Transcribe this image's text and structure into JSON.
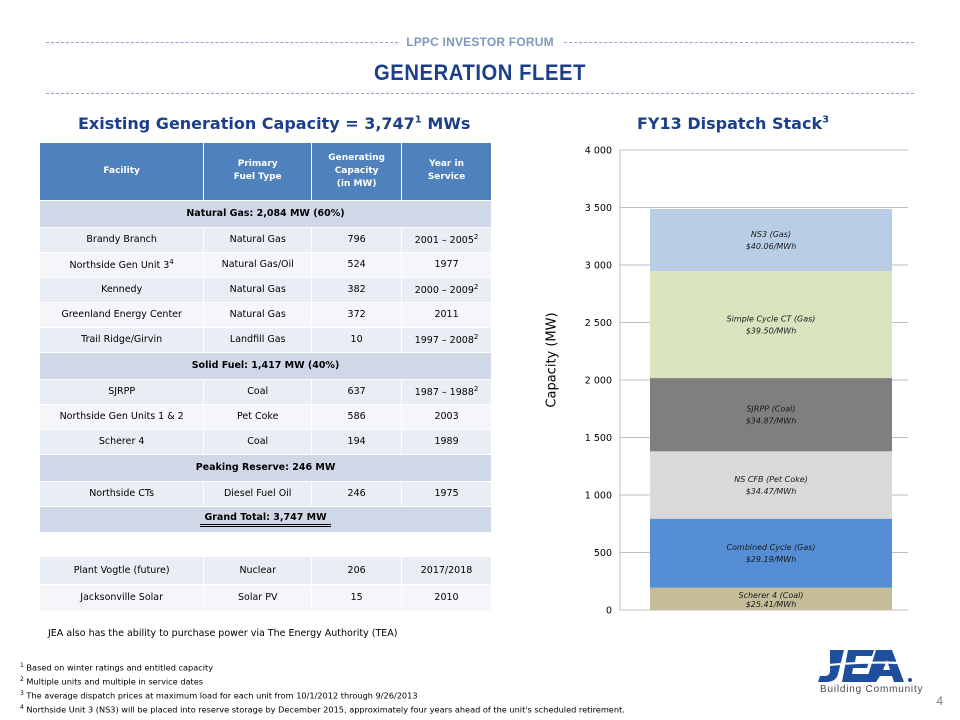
{
  "header": {
    "forum_label": "LPPC INVESTOR FORUM",
    "title": "GENERATION FLEET"
  },
  "left_title": {
    "text": "Existing Generation Capacity = 3,747",
    "sup": "1",
    "tail": " MWs"
  },
  "right_title": {
    "text": "FY13 Dispatch Stack",
    "sup": "3"
  },
  "table": {
    "headers": [
      {
        "line1": "Facility",
        "line2": "",
        "line3": ""
      },
      {
        "line1": "Primary",
        "line2": "Fuel Type",
        "line3": ""
      },
      {
        "line1": "Generating",
        "line2": "Capacity",
        "line3": "(in MW)"
      },
      {
        "line1": "Year in",
        "line2": "Service",
        "line3": ""
      }
    ],
    "groups": [
      {
        "label": "Natural Gas: 2,084 MW (60%)",
        "rows": [
          {
            "facility": "Brandy Branch",
            "fuel": "Natural Gas",
            "capacity": "796",
            "year": "2001 – 2005",
            "year_sup": "2",
            "facility_sup": ""
          },
          {
            "facility": "Northside Gen Unit 3",
            "facility_sup": "4",
            "fuel": "Natural Gas/Oil",
            "capacity": "524",
            "year": "1977",
            "year_sup": ""
          },
          {
            "facility": "Kennedy",
            "fuel": "Natural Gas",
            "capacity": "382",
            "year": "2000 – 2009",
            "year_sup": "2",
            "facility_sup": ""
          },
          {
            "facility": "Greenland Energy Center",
            "fuel": "Natural Gas",
            "capacity": "372",
            "year": "2011",
            "year_sup": "",
            "facility_sup": ""
          },
          {
            "facility": "Trail Ridge/Girvin",
            "fuel": "Landfill Gas",
            "capacity": "10",
            "year": "1997 – 2008",
            "year_sup": "2",
            "facility_sup": ""
          }
        ]
      },
      {
        "label": "Solid Fuel: 1,417 MW (40%)",
        "rows": [
          {
            "facility": "SJRPP",
            "fuel": "Coal",
            "capacity": "637",
            "year": "1987 – 1988",
            "year_sup": "2",
            "facility_sup": ""
          },
          {
            "facility": "Northside Gen Units 1 & 2",
            "fuel": "Pet Coke",
            "capacity": "586",
            "year": "2003",
            "year_sup": "",
            "facility_sup": ""
          },
          {
            "facility": "Scherer 4",
            "fuel": "Coal",
            "capacity": "194",
            "year": "1989",
            "year_sup": "",
            "facility_sup": ""
          }
        ]
      },
      {
        "label": "Peaking Reserve: 246 MW",
        "rows": [
          {
            "facility": "Northside CTs",
            "fuel": "Diesel Fuel Oil",
            "capacity": "246",
            "year": "1975",
            "year_sup": "",
            "facility_sup": ""
          }
        ]
      }
    ],
    "grand_total": "Grand Total: 3,747 MW",
    "extra_rows": [
      {
        "facility": "Plant Vogtle (future)",
        "fuel": "Nuclear",
        "capacity": "206",
        "year": "2017/2018"
      },
      {
        "facility": "Jacksonville Solar",
        "fuel": "Solar PV",
        "capacity": "15",
        "year": "2010"
      }
    ]
  },
  "tea_note": "JEA also has the ability to purchase power via The Energy Authority (TEA)",
  "footnotes": [
    {
      "num": "1",
      "text": " Based on winter ratings and entitled capacity"
    },
    {
      "num": "2",
      "text": " Multiple units and multiple in service dates"
    },
    {
      "num": "3",
      "text": " The average dispatch prices at maximum load for each unit from 10/1/2012 through 9/26/2013"
    },
    {
      "num": "4",
      "text": " Northside Unit 3 (NS3) will be placed into reserve storage by December 2015, approximately four years ahead of the unit's scheduled retirement."
    }
  ],
  "page_number": "4",
  "logo": {
    "tagline": "Building Community"
  },
  "colors": {
    "title_blue": "#1b3f8b",
    "header_blue": "#4f81bd",
    "forum_blue": "#7f97bf"
  },
  "chart_data": {
    "type": "bar",
    "stacked": true,
    "title": "FY13 Dispatch Stack",
    "ylabel": "Capacity (MW)",
    "xlabel": "",
    "ylim": [
      0,
      4000
    ],
    "yticks": [
      0,
      500,
      1000,
      1500,
      2000,
      2500,
      3000,
      3500,
      4000
    ],
    "ytick_labels": [
      "0",
      "500",
      "1 000",
      "1 500",
      "2 000",
      "2 500",
      "3 000",
      "3 500",
      "4 000"
    ],
    "grid": true,
    "segments": [
      {
        "name": "Scherer 4 (Coal)",
        "price": "$25.41/MWh",
        "value": 194,
        "color": "#c4bd97"
      },
      {
        "name": "Combined Cycle (Gas)",
        "price": "$29.19/MWh",
        "value": 600,
        "color": "#558ed5"
      },
      {
        "name": "NS CFB (Pet Coke)",
        "price": "$34.47/MWh",
        "value": 586,
        "color": "#d9d9d9"
      },
      {
        "name": "SJRPP (Coal)",
        "price": "$34.87/MWh",
        "value": 637,
        "color": "#7f7f7f"
      },
      {
        "name": "Simple Cycle CT (Gas)",
        "price": "$39.50/MWh",
        "value": 930,
        "color": "#d7e4bd"
      },
      {
        "name": "NS3 (Gas)",
        "price": "$40.06/MWh",
        "value": 540,
        "color": "#b9cde5"
      }
    ]
  }
}
